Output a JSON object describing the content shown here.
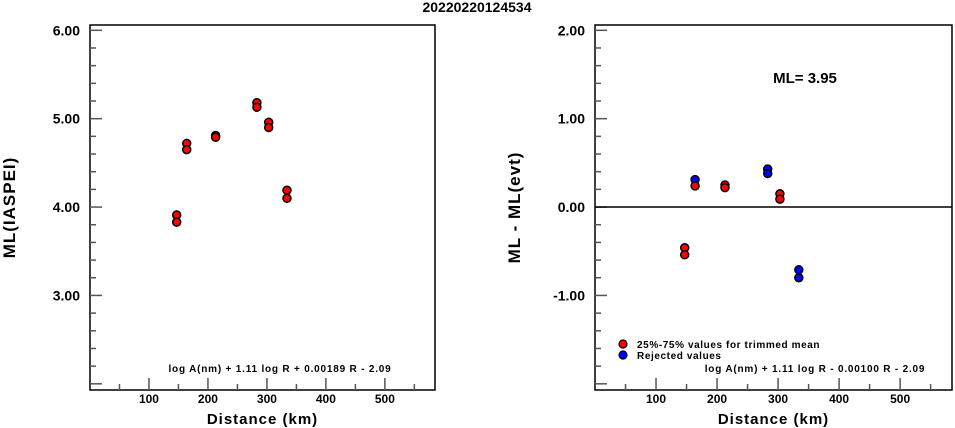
{
  "title": "20220220124534",
  "colors": {
    "trimmed": "#ff0000",
    "rejected": "#0000ff"
  },
  "chart_data": [
    {
      "type": "scatter",
      "xlabel": "Distance (km)",
      "ylabel": "ML(IASPEI)",
      "xlim": [
        0,
        585
      ],
      "ylim": [
        1.93,
        6.06
      ],
      "xticks": [
        100,
        200,
        300,
        400,
        500
      ],
      "yticks": [
        3.0,
        4.0,
        5.0,
        6.0
      ],
      "ytick_labels": [
        "3.00",
        "4.00",
        "5.00",
        "6.00"
      ],
      "annotation": "log A(nm) + 1.11 log R + 0.00189 R - 2.09",
      "points": [
        {
          "x": 147,
          "y": 3.91,
          "group": "trimmed"
        },
        {
          "x": 147,
          "y": 3.83,
          "group": "trimmed"
        },
        {
          "x": 164,
          "y": 4.72,
          "group": "trimmed"
        },
        {
          "x": 164,
          "y": 4.65,
          "group": "trimmed"
        },
        {
          "x": 213,
          "y": 4.81,
          "group": "trimmed"
        },
        {
          "x": 213,
          "y": 4.79,
          "group": "trimmed"
        },
        {
          "x": 283,
          "y": 5.18,
          "group": "trimmed"
        },
        {
          "x": 283,
          "y": 5.13,
          "group": "trimmed"
        },
        {
          "x": 303,
          "y": 4.96,
          "group": "trimmed"
        },
        {
          "x": 303,
          "y": 4.9,
          "group": "trimmed"
        },
        {
          "x": 334,
          "y": 4.19,
          "group": "trimmed"
        },
        {
          "x": 334,
          "y": 4.1,
          "group": "trimmed"
        }
      ]
    },
    {
      "type": "scatter",
      "xlabel": "Distance (km)",
      "ylabel": "ML - ML(evt)",
      "xlim": [
        0,
        585
      ],
      "ylim": [
        -2.07,
        2.06
      ],
      "xticks": [
        100,
        200,
        300,
        400,
        500
      ],
      "yticks": [
        -1.0,
        0.0,
        1.0,
        2.0
      ],
      "ytick_labels": [
        "-1.00",
        "0.00",
        "1.00",
        "2.00"
      ],
      "hline": 0,
      "ml_label": "ML= 3.95",
      "annotation": "log A(nm) + 1.11 log R - 0.00100 R - 2.09",
      "legend": [
        {
          "label": "25%-75% values for trimmed mean",
          "group": "trimmed"
        },
        {
          "label": "Rejected values",
          "group": "rejected"
        }
      ],
      "points": [
        {
          "x": 147,
          "y": -0.46,
          "group": "trimmed"
        },
        {
          "x": 147,
          "y": -0.54,
          "group": "trimmed"
        },
        {
          "x": 164,
          "y": 0.31,
          "group": "rejected"
        },
        {
          "x": 164,
          "y": 0.24,
          "group": "trimmed"
        },
        {
          "x": 213,
          "y": 0.25,
          "group": "trimmed"
        },
        {
          "x": 213,
          "y": 0.22,
          "group": "trimmed"
        },
        {
          "x": 283,
          "y": 0.43,
          "group": "rejected"
        },
        {
          "x": 283,
          "y": 0.38,
          "group": "rejected"
        },
        {
          "x": 303,
          "y": 0.15,
          "group": "trimmed"
        },
        {
          "x": 303,
          "y": 0.09,
          "group": "trimmed"
        },
        {
          "x": 334,
          "y": -0.71,
          "group": "rejected"
        },
        {
          "x": 334,
          "y": -0.8,
          "group": "rejected"
        }
      ]
    }
  ]
}
